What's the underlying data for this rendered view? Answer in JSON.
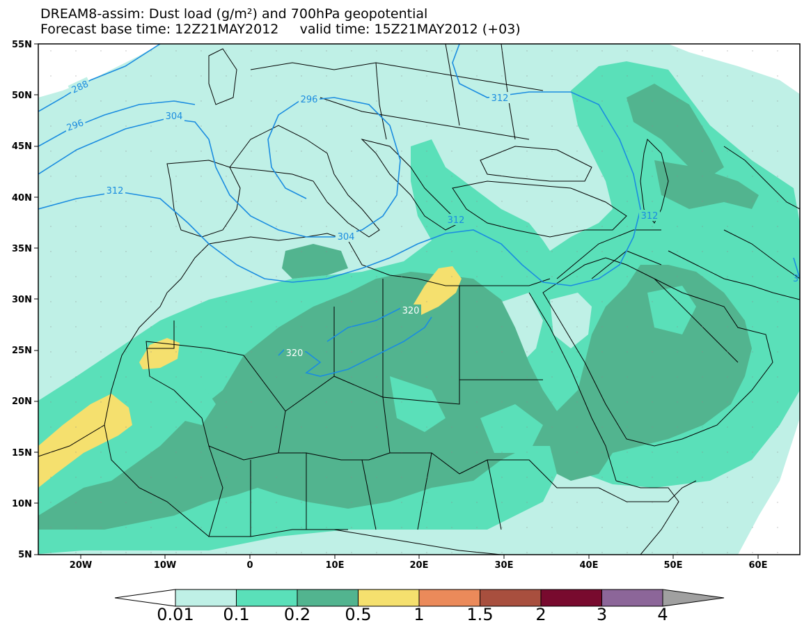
{
  "title": {
    "line1": "DREAM8-assim: Dust load (g/m²) and 700hPa geopotential",
    "line2": "Forecast base time: 12Z21MAY2012     valid time: 15Z21MAY2012 (+03)"
  },
  "map": {
    "lat_ticks": [
      "55N",
      "50N",
      "45N",
      "40N",
      "35N",
      "30N",
      "25N",
      "20N",
      "15N",
      "10N",
      "5N"
    ],
    "lon_ticks": [
      "20W",
      "10W",
      "0",
      "10E",
      "20E",
      "30E",
      "40E",
      "50E",
      "60E"
    ],
    "contour_labels": [
      "288",
      "296",
      "304",
      "296",
      "304",
      "312",
      "312",
      "312",
      "312",
      "320",
      "320",
      "3"
    ],
    "colors": {
      "ocean_background": "#ffffff",
      "level_0_01": "#bff0e6",
      "level_0_1": "#5ae0b9",
      "level_0_2": "#52b48f",
      "level_0_5": "#f5e06e",
      "level_1": "#eb8a5a",
      "level_1_5": "#a84f3e",
      "level_2": "#780a2e",
      "level_3": "#8c6699",
      "level_4": "#a0a0a0",
      "contour": "#1a8ce0",
      "borders": "#000000"
    }
  },
  "colorbar": {
    "labels": [
      "0.01",
      "0.1",
      "0.2",
      "0.5",
      "1",
      "1.5",
      "2",
      "3",
      "4"
    ],
    "colors": [
      "#bff0e6",
      "#5ae0b9",
      "#52b48f",
      "#f5e06e",
      "#eb8a5a",
      "#a84f3e",
      "#780a2e",
      "#8c6699"
    ]
  }
}
